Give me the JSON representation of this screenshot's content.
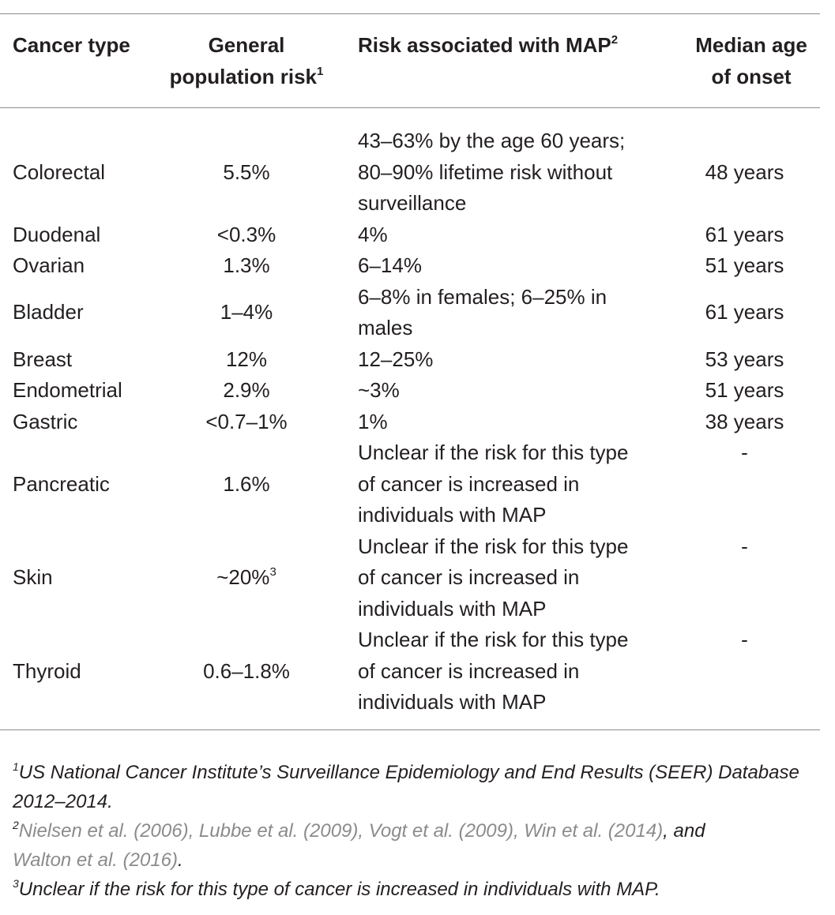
{
  "header": {
    "cancer_type": "Cancer type",
    "general_risk_line1": "General",
    "general_risk_line2": "population risk",
    "general_risk_sup": "1",
    "risk_map": "Risk associated with MAP",
    "risk_map_sup": "2",
    "median_line1": "Median age",
    "median_line2": "of onset"
  },
  "rows": [
    {
      "type": "Colorectal",
      "general": "5.5%",
      "risk_lines": [
        "43–63% by the age 60 years;",
        "80–90% lifetime risk without",
        "surveillance"
      ],
      "age": "48 years"
    },
    {
      "type": "Duodenal",
      "general": "<0.3%",
      "risk_lines": [
        "4%"
      ],
      "age": "61 years"
    },
    {
      "type": "Ovarian",
      "general": "1.3%",
      "risk_lines": [
        "6–14%"
      ],
      "age": "51 years"
    },
    {
      "type": "Bladder",
      "general": "1–4%",
      "risk_lines": [
        "6–8% in females; 6–25% in",
        "males"
      ],
      "age": "61 years"
    },
    {
      "type": "Breast",
      "general": "12%",
      "risk_lines": [
        "12–25%"
      ],
      "age": "53 years"
    },
    {
      "type": "Endometrial",
      "general": "2.9%",
      "risk_lines": [
        "~3%"
      ],
      "age": "51 years"
    },
    {
      "type": "Gastric",
      "general": "<0.7–1%",
      "risk_lines": [
        "1%"
      ],
      "age": "38 years"
    },
    {
      "type": "Pancreatic",
      "general": "1.6%",
      "risk_lines": [
        "Unclear if the risk for this type",
        "of cancer is increased in",
        "individuals with MAP"
      ],
      "age": "-"
    },
    {
      "type": "Skin",
      "general": "~20%",
      "general_sup": "3",
      "risk_lines": [
        "Unclear if the risk for this type",
        "of cancer is increased in",
        "individuals with MAP"
      ],
      "age": "-"
    },
    {
      "type": "Thyroid",
      "general": "0.6–1.8%",
      "risk_lines": [
        "Unclear if the risk for this type",
        "of cancer is increased in",
        "individuals with MAP"
      ],
      "age": "-"
    }
  ],
  "footnotes": {
    "fn1_mark": "1",
    "fn1_text": "US National Cancer Institute’s Surveillance Epidemiology and End Results (SEER) Database 2012–2014.",
    "fn2_mark": "2",
    "fn2_refs": "Nielsen et al. (2006), Lubbe et al. (2009), Vogt et al. (2009), Win et al. (2014)",
    "fn2_and": ", and",
    "fn2_ref_last": "Walton et al. (2016)",
    "fn2_end": ".",
    "fn3_mark": "3",
    "fn3_text": "Unclear if the risk for this type of cancer is increased in individuals with MAP."
  }
}
